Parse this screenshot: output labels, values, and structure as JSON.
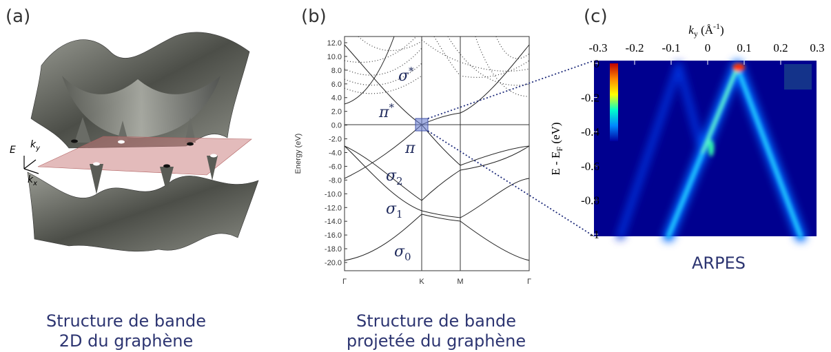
{
  "panel_labels": [
    "(a)",
    "(b)",
    "(c)"
  ],
  "panel_a": {
    "axis_labels": {
      "E": "E",
      "ky": [
        "k",
        "y"
      ],
      "kx": [
        "k",
        "x"
      ]
    },
    "caption": [
      "Structure de bande",
      "2D du graphène"
    ]
  },
  "panel_b": {
    "ylabel": "Energy (eV)",
    "ylim": [
      -21.2,
      12.9
    ],
    "yticks": [
      {
        "value": 12,
        "label": "12.0"
      },
      {
        "value": 10,
        "label": "10.0"
      },
      {
        "value": 8,
        "label": "8.0"
      },
      {
        "value": 6,
        "label": "6.0"
      },
      {
        "value": 4,
        "label": "4.0"
      },
      {
        "value": 2,
        "label": "2.0"
      },
      {
        "value": 0,
        "label": "0.0"
      },
      {
        "value": -2,
        "label": "-2.0"
      },
      {
        "value": -4,
        "label": "-4.0"
      },
      {
        "value": -6,
        "label": "-6.0"
      },
      {
        "value": -8,
        "label": "-8.0"
      },
      {
        "value": -10,
        "label": "-10.0"
      },
      {
        "value": -12,
        "label": "-12.0"
      },
      {
        "value": -14,
        "label": "-14.0"
      },
      {
        "value": -16,
        "label": "-16.0"
      },
      {
        "value": -18,
        "label": "-18.0"
      },
      {
        "value": -20,
        "label": "-20.0"
      }
    ],
    "xticks": [
      "Γ",
      "K",
      "M",
      "Γ"
    ],
    "band_labels": [
      [
        "σ",
        "*"
      ],
      [
        "π",
        "*"
      ],
      [
        "π"
      ],
      [
        "σ",
        "2"
      ],
      [
        "σ",
        "1"
      ],
      [
        "σ",
        "0"
      ]
    ],
    "caption": [
      "Structure de bande",
      "projetée du graphène"
    ]
  },
  "panel_c": {
    "xlabel": [
      "k",
      "y",
      " (Å",
      "-1",
      ")"
    ],
    "ylabel": [
      "E - E",
      "F",
      " (eV)"
    ],
    "xlim": [
      -0.3,
      0.3
    ],
    "xticks": [
      -0.3,
      -0.2,
      -0.1,
      0,
      0.1,
      0.2,
      0.3
    ],
    "ylim": [
      -1,
      0
    ],
    "yticks": [
      0,
      -0.2,
      -0.4,
      -0.6,
      -0.8,
      -1
    ],
    "caption": "ARPES"
  }
}
